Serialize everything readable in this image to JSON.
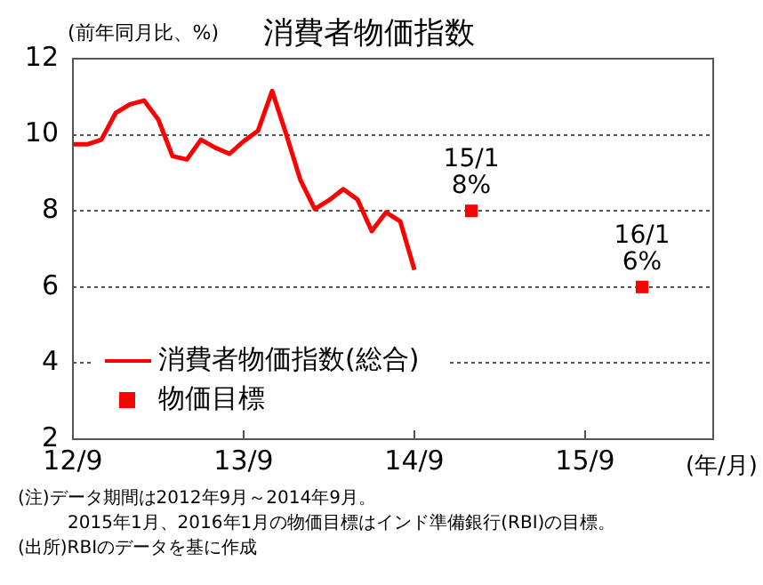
{
  "chart_data": {
    "type": "line",
    "title": "消費者物価指数",
    "ylabel": "(前年同月比、%)",
    "xlabel": "(年/月)",
    "xlim": [
      "2012-09",
      "2016-06"
    ],
    "xticks": [
      {
        "value": "2012-09",
        "label": "12/9"
      },
      {
        "value": "2013-09",
        "label": "13/9"
      },
      {
        "value": "2014-09",
        "label": "14/9"
      },
      {
        "value": "2015-09",
        "label": "15/9"
      }
    ],
    "ylim": [
      2,
      12
    ],
    "yticks": [
      2,
      4,
      6,
      8,
      10,
      12
    ],
    "grid": "y",
    "legend": "bottom left",
    "series": [
      {
        "name": "消費者物価指数(総合)",
        "type": "line",
        "color": "#ff0000",
        "marker": "none",
        "x": [
          "2012-09",
          "2012-10",
          "2012-11",
          "2012-12",
          "2013-01",
          "2013-02",
          "2013-03",
          "2013-04",
          "2013-05",
          "2013-06",
          "2013-07",
          "2013-08",
          "2013-09",
          "2013-10",
          "2013-11",
          "2013-12",
          "2014-01",
          "2014-02",
          "2014-03",
          "2014-04",
          "2014-05",
          "2014-06",
          "2014-07",
          "2014-08",
          "2014-09"
        ],
        "values": [
          9.75,
          9.75,
          9.87,
          10.57,
          10.8,
          10.9,
          10.4,
          9.44,
          9.35,
          9.87,
          9.66,
          9.5,
          9.83,
          10.1,
          11.15,
          10.0,
          8.8,
          8.05,
          8.28,
          8.57,
          8.3,
          7.47,
          7.96,
          7.73,
          6.45
        ]
      },
      {
        "name": "物価目標",
        "type": "scatter",
        "color": "#ff0000",
        "marker": "square",
        "x": [
          "2015-01",
          "2016-01"
        ],
        "values": [
          8,
          6
        ]
      }
    ],
    "annotations": [
      {
        "text": "15/1\n8%",
        "x": "2015-01",
        "y": 8
      },
      {
        "text": "16/1\n6%",
        "x": "2016-01",
        "y": 6
      },
      "(注)データ期間は2012年9月～2014年9月。",
      "2015年1月、2016年1月の物価目標はインド準備銀行(RBI)の目標。",
      "(出所)RBIのデータを基に作成"
    ]
  }
}
